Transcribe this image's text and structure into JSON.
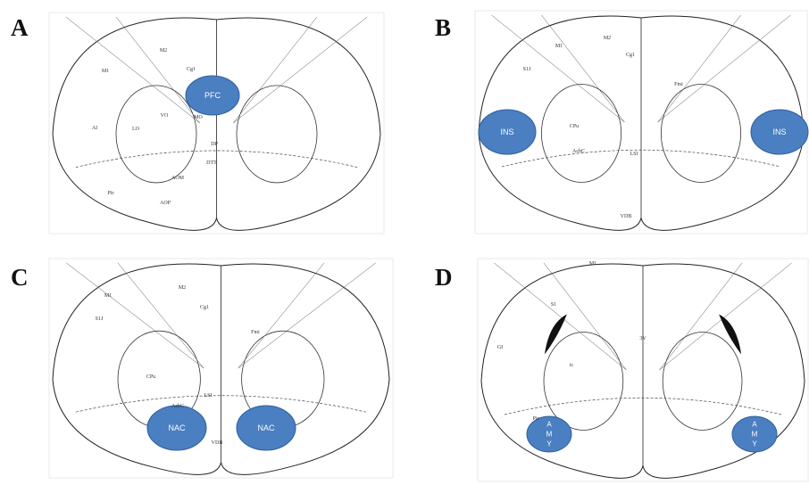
{
  "panels": [
    {
      "letter": "A",
      "regions": [
        {
          "label": "PFC"
        }
      ],
      "atlas_labels": [
        "M2",
        "M1",
        "Cg1",
        "VO",
        "MO",
        "LO",
        "AI",
        "DP",
        "DTT",
        "AOM",
        "AOP",
        "Pir"
      ]
    },
    {
      "letter": "B",
      "regions": [
        {
          "label": "INS"
        },
        {
          "label": "INS"
        }
      ],
      "atlas_labels": [
        "M1",
        "M2",
        "Cg1",
        "S1J",
        "CPu",
        "AcbC",
        "LSI",
        "Fmi",
        "VDB"
      ]
    },
    {
      "letter": "C",
      "regions": [
        {
          "label": "NAC"
        },
        {
          "label": "NAC"
        }
      ],
      "atlas_labels": [
        "M1",
        "M2",
        "Cg1",
        "S1J",
        "CPu",
        "AcbC",
        "VDB",
        "Fmi",
        "LSI"
      ]
    },
    {
      "letter": "D",
      "regions": [
        {
          "label": "AMY"
        },
        {
          "label": "AMY"
        }
      ],
      "atlas_labels": [
        "M1",
        "S1",
        "GI",
        "Pir",
        "ic",
        "3V"
      ]
    }
  ]
}
